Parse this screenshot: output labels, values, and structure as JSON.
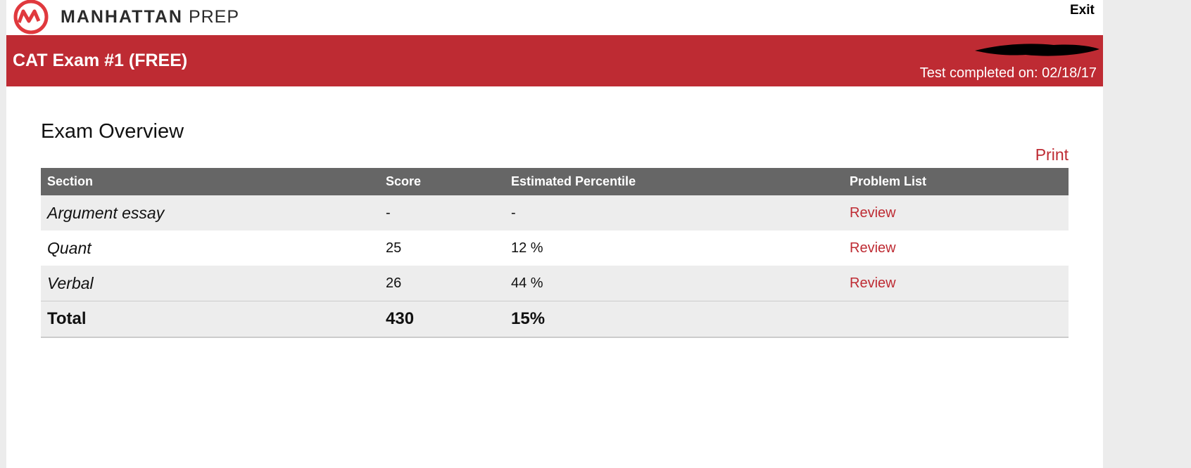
{
  "header": {
    "brand": "MANHATTAN",
    "brand_suffix": "PREP",
    "exit": "Exit"
  },
  "banner": {
    "title": "CAT Exam #1 (FREE)",
    "completed": "Test completed on: 02/18/17"
  },
  "overview": {
    "title": "Exam Overview",
    "print": "Print",
    "table": {
      "columns": [
        "Section",
        "Score",
        "Estimated Percentile",
        "Problem List"
      ],
      "rows": [
        [
          "Argument essay",
          "-",
          "-",
          "Review"
        ],
        [
          "Quant",
          "25",
          "12 %",
          "Review"
        ],
        [
          "Verbal",
          "26",
          "44 %",
          "Review"
        ]
      ],
      "total": [
        "Total",
        "430",
        "15%"
      ]
    }
  }
}
